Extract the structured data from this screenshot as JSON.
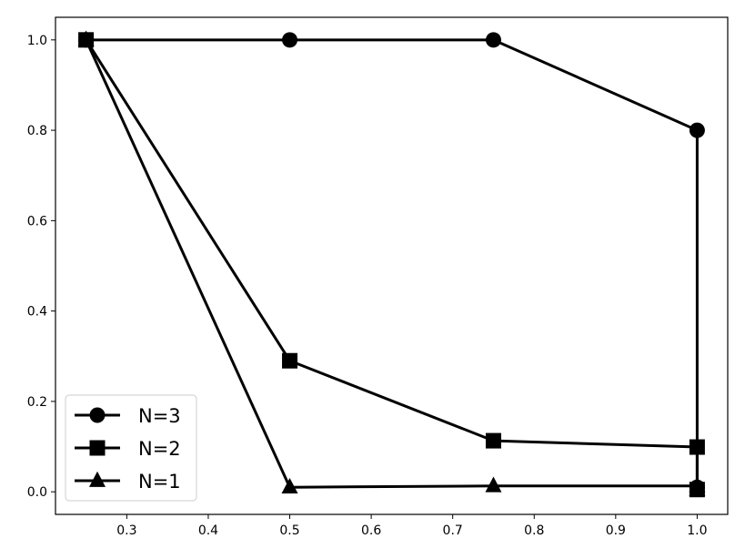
{
  "chart_data": {
    "type": "line",
    "title": "",
    "xlabel": "",
    "ylabel": "",
    "xlim": [
      0.2125,
      1.0375
    ],
    "ylim": [
      -0.05,
      1.05
    ],
    "xticks": [
      "0.3",
      "0.4",
      "0.5",
      "0.6",
      "0.7",
      "0.8",
      "0.9",
      "1.0"
    ],
    "yticks": [
      "0.0",
      "0.2",
      "0.4",
      "0.6",
      "0.8",
      "1.0"
    ],
    "grid": false,
    "legend_position": "lower-left",
    "series": [
      {
        "name": "N=3",
        "marker": "circle",
        "color": "#000000",
        "points": [
          [
            0.25,
            1.0
          ],
          [
            0.5,
            1.0
          ],
          [
            0.75,
            1.0
          ],
          [
            1.0,
            0.8
          ],
          [
            1.0,
            0.01
          ]
        ]
      },
      {
        "name": "N=2",
        "marker": "square",
        "color": "#000000",
        "points": [
          [
            0.25,
            1.0
          ],
          [
            0.5,
            0.29
          ],
          [
            0.75,
            0.113
          ],
          [
            1.0,
            0.099
          ],
          [
            1.0,
            0.005
          ]
        ]
      },
      {
        "name": "N=1",
        "marker": "triangle",
        "color": "#000000",
        "points": [
          [
            0.25,
            1.0
          ],
          [
            0.5,
            0.01
          ],
          [
            0.75,
            0.013
          ],
          [
            1.0,
            0.013
          ],
          [
            1.0,
            0.005
          ]
        ]
      }
    ]
  }
}
